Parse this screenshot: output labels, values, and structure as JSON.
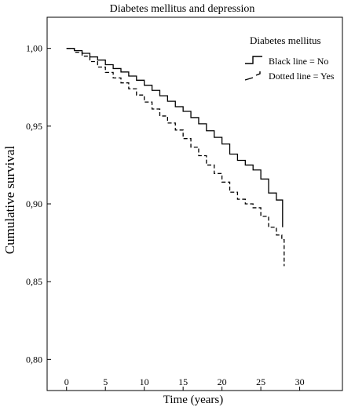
{
  "chart_data": {
    "type": "line",
    "title": "Diabetes mellitus and depression",
    "xlabel": "Time (years)",
    "ylabel": "Cumulative survival",
    "xlim": [
      -2.5,
      35.5
    ],
    "ylim": [
      0.78,
      1.02
    ],
    "xticks": [
      0,
      5,
      10,
      15,
      20,
      25,
      30
    ],
    "xtick_labels": [
      "0",
      "5",
      "10",
      "15",
      "20",
      "25",
      "30"
    ],
    "yticks": [
      0.8,
      0.85,
      0.9,
      0.95,
      1.0
    ],
    "ytick_labels": [
      "0,80",
      "0,85",
      "0,90",
      "0,95",
      "1,00"
    ],
    "grid": false,
    "legend": {
      "title": "Diabetes mellitus",
      "position": "top-right"
    },
    "series": [
      {
        "name": "Black line = No",
        "line_style": "solid",
        "color": "#000000",
        "points": [
          [
            0,
            1.0
          ],
          [
            1,
            0.9985
          ],
          [
            2,
            0.9968
          ],
          [
            3,
            0.9945
          ],
          [
            4,
            0.9925
          ],
          [
            5,
            0.9895
          ],
          [
            6,
            0.987
          ],
          [
            7,
            0.9848
          ],
          [
            8,
            0.9822
          ],
          [
            9,
            0.9795
          ],
          [
            10,
            0.9763
          ],
          [
            11,
            0.973
          ],
          [
            12,
            0.9695
          ],
          [
            13,
            0.966
          ],
          [
            14,
            0.9625
          ],
          [
            15,
            0.9595
          ],
          [
            16,
            0.9555
          ],
          [
            17,
            0.9515
          ],
          [
            18,
            0.947
          ],
          [
            19,
            0.9428
          ],
          [
            20,
            0.9385
          ],
          [
            21,
            0.932
          ],
          [
            22,
            0.928
          ],
          [
            23,
            0.925
          ],
          [
            24,
            0.9218
          ],
          [
            25,
            0.916
          ],
          [
            26,
            0.907
          ],
          [
            27,
            0.9025
          ],
          [
            27.8,
            0.885
          ]
        ]
      },
      {
        "name": "Dotted line = Yes",
        "line_style": "dashed",
        "color": "#000000",
        "points": [
          [
            0,
            1.0
          ],
          [
            1,
            0.9975
          ],
          [
            2,
            0.995
          ],
          [
            3,
            0.9915
          ],
          [
            4,
            0.988
          ],
          [
            5,
            0.9845
          ],
          [
            6,
            0.981
          ],
          [
            7,
            0.9778
          ],
          [
            8,
            0.974
          ],
          [
            9,
            0.97
          ],
          [
            10,
            0.9655
          ],
          [
            11,
            0.961
          ],
          [
            12,
            0.9565
          ],
          [
            13,
            0.952
          ],
          [
            14,
            0.9475
          ],
          [
            15,
            0.942
          ],
          [
            16,
            0.9365
          ],
          [
            17,
            0.931
          ],
          [
            18,
            0.925
          ],
          [
            19,
            0.9195
          ],
          [
            20,
            0.914
          ],
          [
            21,
            0.9075
          ],
          [
            22,
            0.903
          ],
          [
            23,
            0.9
          ],
          [
            24,
            0.8975
          ],
          [
            25,
            0.892
          ],
          [
            26,
            0.885
          ],
          [
            27,
            0.88
          ],
          [
            27.7,
            0.877
          ],
          [
            28.0,
            0.86
          ]
        ]
      }
    ]
  }
}
